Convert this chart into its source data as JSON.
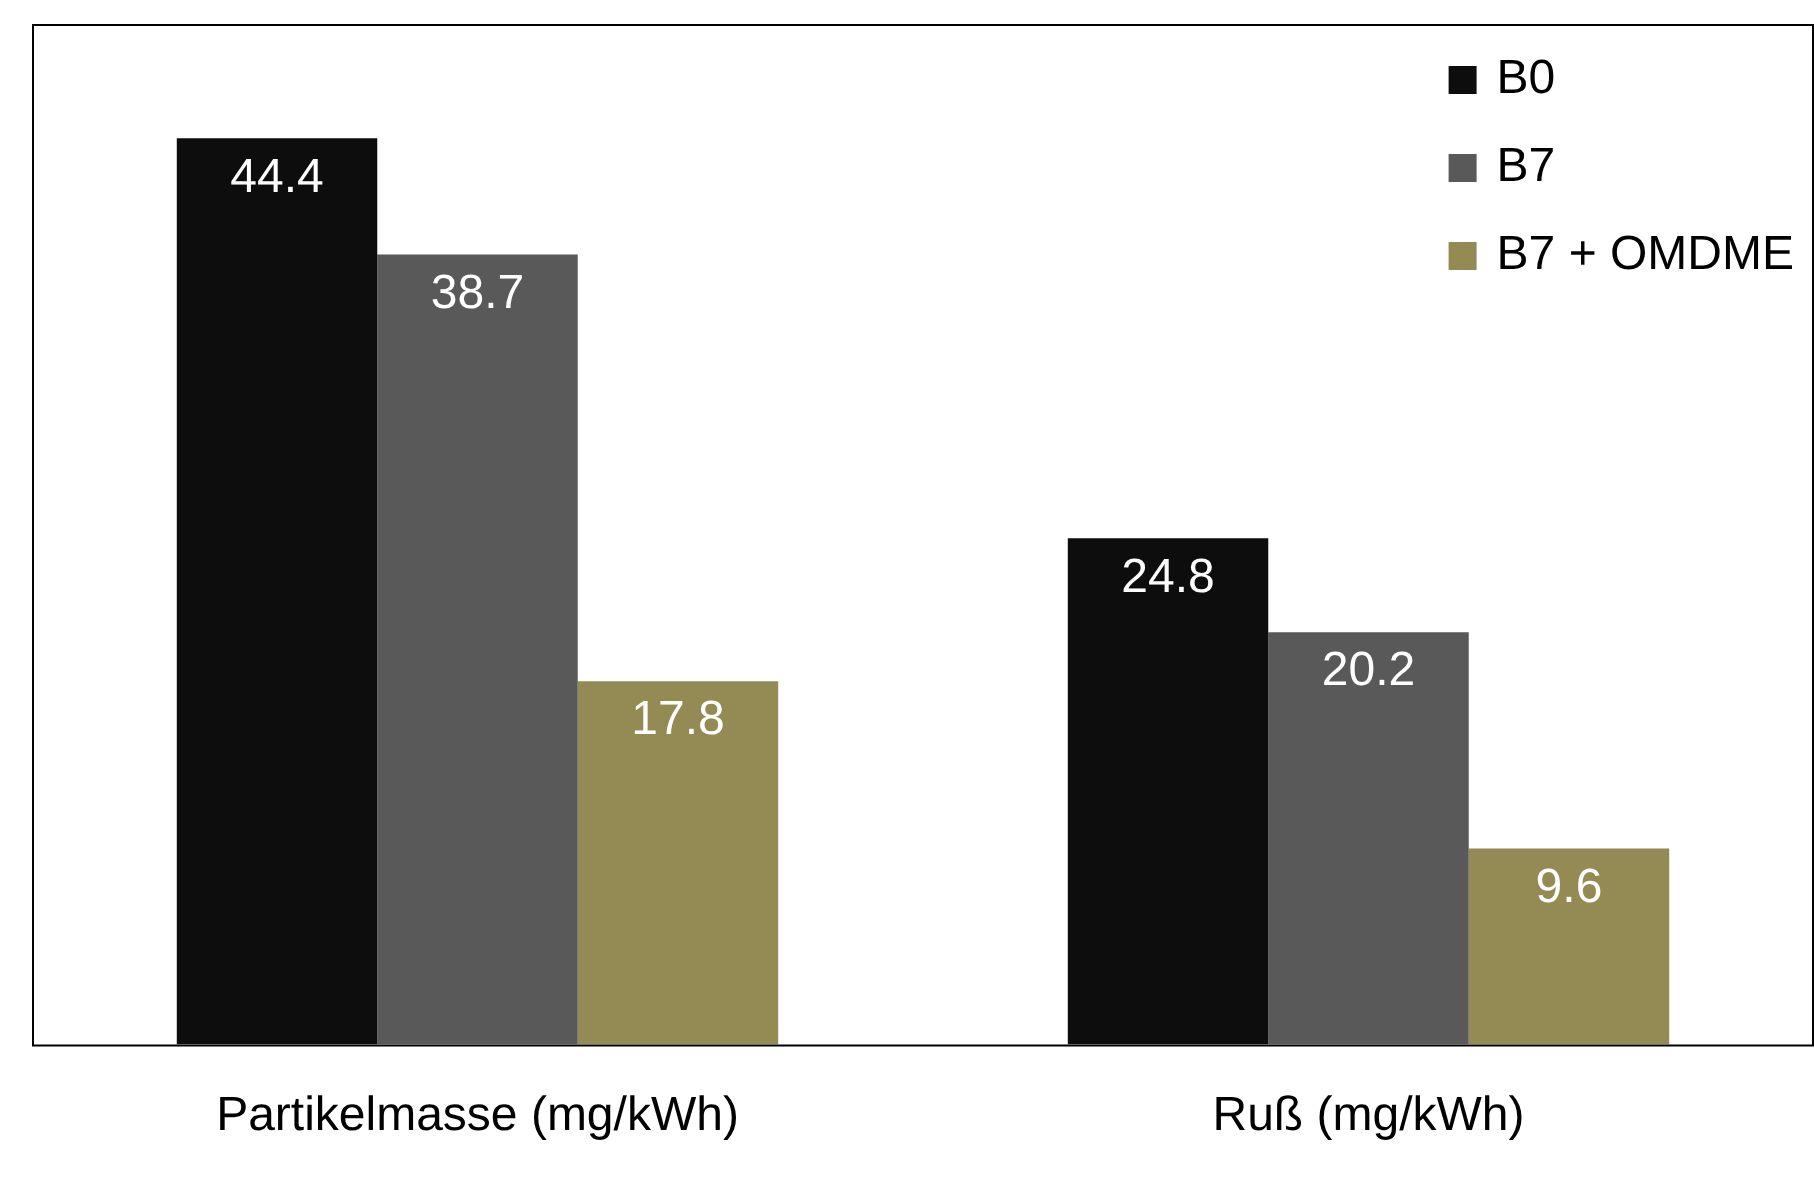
{
  "chart_data": {
    "type": "bar",
    "categories": [
      "Partikelmasse (mg/kWh)",
      "Ruß (mg/kWh)"
    ],
    "series": [
      {
        "name": "B0",
        "color": "#0d0d0d",
        "values": [
          44.4,
          24.8
        ]
      },
      {
        "name": "B7",
        "color": "#595959",
        "values": [
          38.7,
          20.2
        ]
      },
      {
        "name": "B7 + OMDME",
        "color": "#948a54",
        "values": [
          17.8,
          9.6
        ]
      }
    ],
    "ylim": [
      0,
      50
    ],
    "tick_labels": "x",
    "data_labels": true,
    "grid": false,
    "legend": "top right"
  }
}
